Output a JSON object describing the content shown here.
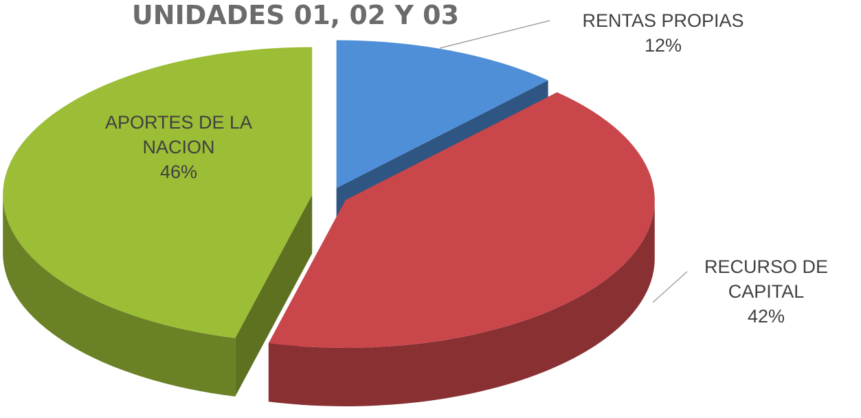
{
  "chart_data": {
    "type": "pie",
    "title": "UNIDADES 01, 02 Y 03",
    "categories": [
      "RENTAS PROPIAS",
      "RECURSO DE CAPITAL",
      "APORTES DE LA NACION"
    ],
    "values": [
      12,
      42,
      46
    ],
    "value_labels": [
      "12%",
      "42%",
      "46%"
    ],
    "colors": [
      "#4f8fd8",
      "#c9464b",
      "#9cbd36"
    ]
  }
}
